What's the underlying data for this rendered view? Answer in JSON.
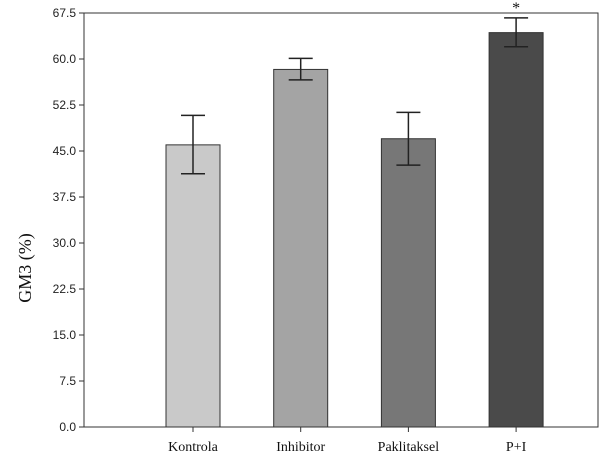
{
  "chart_data": {
    "type": "bar",
    "categories": [
      "Kontrola",
      "Inhibitor",
      "Paklitaksel",
      "P+I"
    ],
    "values": [
      46.0,
      58.3,
      47.0,
      64.3
    ],
    "error": [
      [
        41.3,
        50.8
      ],
      [
        56.6,
        60.1
      ],
      [
        42.7,
        51.3
      ],
      [
        62.0,
        66.7
      ]
    ],
    "colors": [
      "#c9c9c9",
      "#a4a4a4",
      "#777777",
      "#4a4a4a"
    ],
    "ylabel": "GM3 (%)",
    "xlabel": "",
    "ylim": [
      0,
      67.5
    ],
    "yticks": [
      "0.0",
      "7.5",
      "15.0",
      "22.5",
      "30.0",
      "37.5",
      "45.0",
      "52.5",
      "60.0",
      "67.5"
    ],
    "annotations": [
      {
        "category": "P+I",
        "text": "*"
      }
    ],
    "grid": false,
    "legend": "none"
  }
}
